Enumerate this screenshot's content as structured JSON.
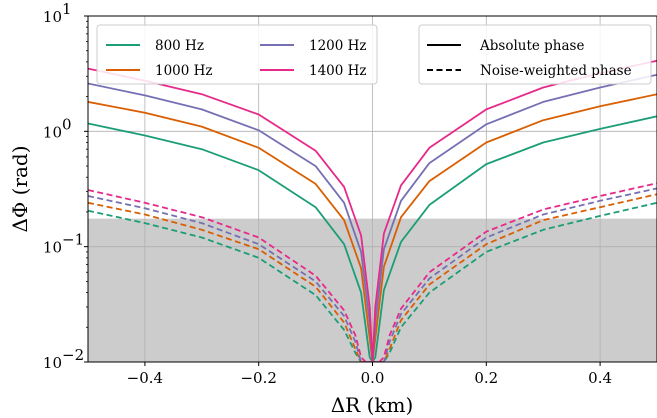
{
  "chart_data": {
    "type": "line",
    "xlabel": "ΔR (km)",
    "ylabel": "ΔΦ (rad)",
    "x_scale": "linear",
    "y_scale": "log",
    "xlim": [
      -0.5,
      0.5
    ],
    "ylim": [
      0.01,
      10
    ],
    "grid": true,
    "x_ticks": [
      {
        "value": -0.4,
        "label": "−0.4"
      },
      {
        "value": -0.2,
        "label": "−0.2"
      },
      {
        "value": 0.0,
        "label": "0.0"
      },
      {
        "value": 0.2,
        "label": "0.2"
      },
      {
        "value": 0.4,
        "label": "0.4"
      }
    ],
    "y_ticks": [
      {
        "value": 0.01,
        "base": "10",
        "exp": "−2"
      },
      {
        "value": 0.1,
        "base": "10",
        "exp": "−1"
      },
      {
        "value": 1,
        "base": "10",
        "exp": "0"
      },
      {
        "value": 10,
        "base": "10",
        "exp": "1"
      }
    ],
    "shaded_region": {
      "y_from": 0.01,
      "y_to": 0.175,
      "color": "#cccccc"
    },
    "legend_frequencies": {
      "location": "top-left",
      "columns": 2,
      "entries": [
        {
          "label": "800 Hz",
          "color": "#1b9e77"
        },
        {
          "label": "1000 Hz",
          "color": "#d95f02"
        },
        {
          "label": "1200 Hz",
          "color": "#7570b3"
        },
        {
          "label": "1400 Hz",
          "color": "#e7298a"
        }
      ]
    },
    "legend_styles": {
      "location": "top-right",
      "entries": [
        {
          "label": "Absolute phase",
          "dash": "solid"
        },
        {
          "label": "Noise-weighted phase",
          "dash": "dashed"
        }
      ]
    },
    "series": [
      {
        "frequency": "800 Hz",
        "phase": "Absolute phase",
        "color": "#1b9e77",
        "dash": "solid",
        "x": [
          -0.5,
          -0.4,
          -0.3,
          -0.2,
          -0.1,
          -0.05,
          -0.02,
          -0.005,
          0,
          0.005,
          0.02,
          0.05,
          0.1,
          0.2,
          0.3,
          0.4,
          0.5
        ],
        "y": [
          1.17,
          0.92,
          0.7,
          0.46,
          0.22,
          0.105,
          0.04,
          0.011,
          0.01,
          0.011,
          0.042,
          0.11,
          0.23,
          0.52,
          0.8,
          1.05,
          1.35
        ]
      },
      {
        "frequency": "1000 Hz",
        "phase": "Absolute phase",
        "color": "#d95f02",
        "dash": "solid",
        "x": [
          -0.5,
          -0.4,
          -0.3,
          -0.2,
          -0.1,
          -0.05,
          -0.02,
          -0.005,
          0,
          0.005,
          0.02,
          0.05,
          0.1,
          0.2,
          0.3,
          0.4,
          0.5
        ],
        "y": [
          1.8,
          1.45,
          1.1,
          0.72,
          0.35,
          0.17,
          0.065,
          0.016,
          0.01,
          0.016,
          0.067,
          0.18,
          0.37,
          0.8,
          1.25,
          1.65,
          2.1
        ]
      },
      {
        "frequency": "1200 Hz",
        "phase": "Absolute phase",
        "color": "#7570b3",
        "dash": "solid",
        "x": [
          -0.5,
          -0.4,
          -0.3,
          -0.2,
          -0.1,
          -0.05,
          -0.02,
          -0.005,
          0,
          0.005,
          0.02,
          0.05,
          0.1,
          0.2,
          0.3,
          0.4,
          0.5
        ],
        "y": [
          2.6,
          2.05,
          1.55,
          1.02,
          0.5,
          0.24,
          0.09,
          0.022,
          0.01,
          0.022,
          0.095,
          0.25,
          0.53,
          1.15,
          1.8,
          2.4,
          3.1
        ]
      },
      {
        "frequency": "1400 Hz",
        "phase": "Absolute phase",
        "color": "#e7298a",
        "dash": "solid",
        "x": [
          -0.5,
          -0.4,
          -0.3,
          -0.2,
          -0.1,
          -0.05,
          -0.02,
          -0.005,
          0,
          0.005,
          0.02,
          0.05,
          0.1,
          0.2,
          0.3,
          0.4,
          0.5
        ],
        "y": [
          3.5,
          2.75,
          2.1,
          1.4,
          0.68,
          0.33,
          0.125,
          0.03,
          0.01,
          0.03,
          0.13,
          0.34,
          0.72,
          1.55,
          2.4,
          3.2,
          4.1
        ]
      },
      {
        "frequency": "800 Hz",
        "phase": "Noise-weighted phase",
        "color": "#1b9e77",
        "dash": "dashed",
        "x": [
          -0.5,
          -0.4,
          -0.3,
          -0.2,
          -0.1,
          -0.05,
          -0.03,
          -0.02,
          -0.012,
          0.012,
          0.02,
          0.03,
          0.05,
          0.1,
          0.2,
          0.3,
          0.4,
          0.5
        ],
        "y": [
          0.205,
          0.16,
          0.12,
          0.08,
          0.038,
          0.019,
          0.012,
          0.01,
          0.01,
          0.01,
          0.01,
          0.012,
          0.02,
          0.04,
          0.09,
          0.14,
          0.185,
          0.24
        ]
      },
      {
        "frequency": "1000 Hz",
        "phase": "Noise-weighted phase",
        "color": "#d95f02",
        "dash": "dashed",
        "x": [
          -0.5,
          -0.4,
          -0.3,
          -0.2,
          -0.1,
          -0.05,
          -0.03,
          -0.02,
          -0.012,
          0.012,
          0.02,
          0.03,
          0.05,
          0.1,
          0.2,
          0.3,
          0.4,
          0.5
        ],
        "y": [
          0.24,
          0.19,
          0.14,
          0.095,
          0.045,
          0.022,
          0.013,
          0.01,
          0.01,
          0.01,
          0.01,
          0.013,
          0.023,
          0.047,
          0.105,
          0.17,
          0.22,
          0.285
        ]
      },
      {
        "frequency": "1200 Hz",
        "phase": "Noise-weighted phase",
        "color": "#7570b3",
        "dash": "dashed",
        "x": [
          -0.5,
          -0.4,
          -0.3,
          -0.2,
          -0.1,
          -0.05,
          -0.03,
          -0.02,
          -0.012,
          0.012,
          0.02,
          0.03,
          0.05,
          0.1,
          0.2,
          0.3,
          0.4,
          0.5
        ],
        "y": [
          0.275,
          0.215,
          0.16,
          0.105,
          0.05,
          0.025,
          0.015,
          0.01,
          0.01,
          0.01,
          0.01,
          0.015,
          0.026,
          0.053,
          0.12,
          0.19,
          0.25,
          0.32
        ]
      },
      {
        "frequency": "1400 Hz",
        "phase": "Noise-weighted phase",
        "color": "#e7298a",
        "dash": "dashed",
        "x": [
          -0.5,
          -0.4,
          -0.3,
          -0.2,
          -0.1,
          -0.05,
          -0.03,
          -0.02,
          -0.012,
          0.012,
          0.02,
          0.03,
          0.05,
          0.1,
          0.2,
          0.3,
          0.4,
          0.5
        ],
        "y": [
          0.31,
          0.24,
          0.18,
          0.12,
          0.056,
          0.028,
          0.017,
          0.011,
          0.01,
          0.01,
          0.011,
          0.017,
          0.029,
          0.06,
          0.135,
          0.21,
          0.275,
          0.355
        ]
      }
    ]
  }
}
